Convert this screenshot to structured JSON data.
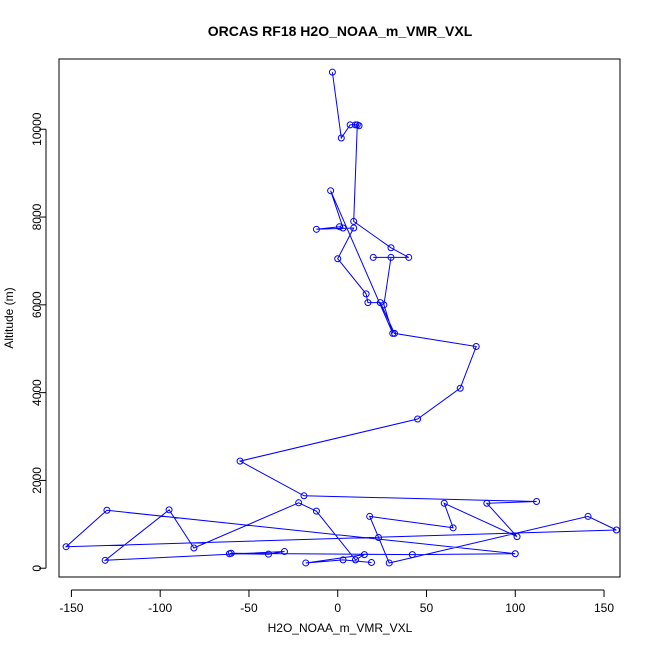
{
  "chart_data": {
    "type": "line",
    "title": "ORCAS RF18 H2O_NOAA_m_VMR_VXL",
    "xlabel": "H2O_NOAA_m_VMR_VXL",
    "ylabel": "Altitude (m)",
    "xlim": [
      -157,
      159
    ],
    "ylim": [
      -200,
      11600
    ],
    "xticks": [
      -150,
      -100,
      -50,
      0,
      50,
      100,
      150
    ],
    "yticks": [
      0,
      2000,
      4000,
      6000,
      8000,
      10000
    ],
    "series_color": "#0000ff",
    "grid": false,
    "series": [
      {
        "marker": "open-circle",
        "x": [
          -3,
          2,
          7,
          10,
          12,
          11,
          9,
          30,
          40,
          20,
          30,
          26,
          31,
          -4,
          3,
          1,
          -12,
          9,
          0,
          16,
          17,
          24,
          32,
          78,
          69,
          45,
          -55,
          -19,
          112,
          84,
          101,
          60,
          65,
          18,
          23,
          29,
          141,
          157,
          -153,
          -130,
          100,
          42,
          -60,
          -61,
          -39,
          -30,
          -131,
          -95,
          -81,
          -22,
          -12,
          10,
          15,
          -18,
          3,
          19
        ],
        "y": [
          11300,
          9800,
          10100,
          10100,
          10080,
          10100,
          7900,
          7300,
          7080,
          7080,
          7080,
          6000,
          5350,
          8600,
          7750,
          7780,
          7720,
          7750,
          7050,
          6250,
          6050,
          6050,
          5350,
          5050,
          4100,
          3400,
          2440,
          1650,
          1520,
          1480,
          720,
          1480,
          920,
          1180,
          700,
          120,
          1180,
          870,
          490,
          1320,
          330,
          310,
          340,
          330,
          320,
          380,
          180,
          1330,
          460,
          1490,
          1300,
          190,
          310,
          120,
          190,
          130
        ]
      }
    ]
  }
}
